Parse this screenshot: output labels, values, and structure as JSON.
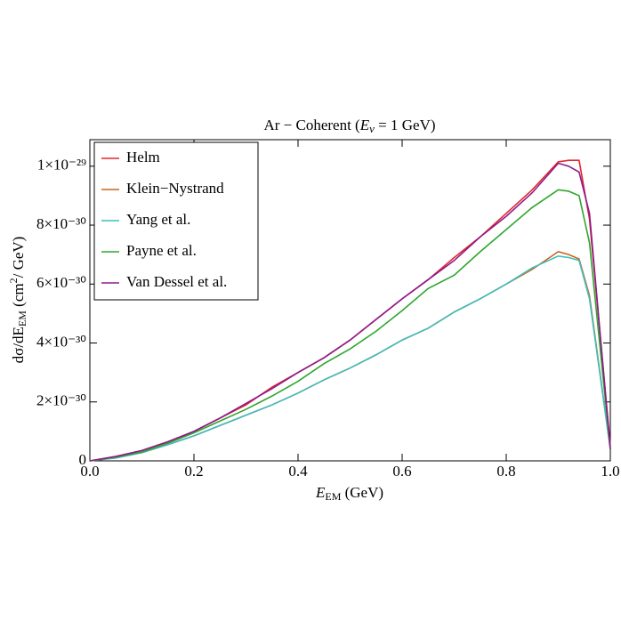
{
  "chart_data": {
    "type": "line",
    "title": [
      "Ar − Coherent (",
      "E",
      "ν",
      " = 1 GeV)"
    ],
    "x_label": [
      "E",
      "EM",
      " (GeV)"
    ],
    "y_label": [
      "dσ/dE",
      "EM",
      " (cm",
      "2",
      "/ GeV)"
    ],
    "x": [
      0,
      0.05,
      0.1,
      0.15,
      0.2,
      0.25,
      0.3,
      0.35,
      0.4,
      0.45,
      0.5,
      0.55,
      0.6,
      0.65,
      0.7,
      0.75,
      0.8,
      0.85,
      0.9,
      0.92,
      0.94,
      0.96,
      1.0
    ],
    "series": [
      {
        "name": "Helm",
        "color": "#e3262b",
        "values": [
          0,
          1.5e-31,
          3.5e-31,
          6.5e-31,
          1e-30,
          1.45e-30,
          1.9e-30,
          2.5e-30,
          3e-30,
          3.5e-30,
          4.1e-30,
          4.8e-30,
          5.5e-30,
          6.15e-30,
          6.9e-30,
          7.6e-30,
          8.4e-30,
          9.2e-30,
          1.015e-29,
          1.02e-29,
          1.02e-29,
          8.2e-30,
          5e-31
        ]
      },
      {
        "name": "Klein−Nystrand",
        "color": "#c8661e",
        "values": [
          0,
          1e-31,
          2.8e-31,
          5.5e-31,
          8.5e-31,
          1.2e-30,
          1.55e-30,
          1.9e-30,
          2.3e-30,
          2.75e-30,
          3.15e-30,
          3.6e-30,
          4.1e-30,
          4.5e-30,
          5.05e-30,
          5.5e-30,
          6e-30,
          6.5e-30,
          7.1e-30,
          7e-30,
          6.85e-30,
          5.6e-30,
          4e-31
        ]
      },
      {
        "name": "Yang et al.",
        "color": "#3fbdbd",
        "values": [
          0,
          1e-31,
          2.8e-31,
          5.5e-31,
          8.5e-31,
          1.2e-30,
          1.55e-30,
          1.9e-30,
          2.3e-30,
          2.75e-30,
          3.15e-30,
          3.6e-30,
          4.1e-30,
          4.5e-30,
          5.05e-30,
          5.5e-30,
          6e-30,
          6.55e-30,
          6.95e-30,
          6.9e-30,
          6.8e-30,
          5.5e-30,
          4e-31
        ]
      },
      {
        "name": "Payne et al.",
        "color": "#2ea62e",
        "values": [
          0,
          1.3e-31,
          3e-31,
          6e-31,
          9.5e-31,
          1.35e-30,
          1.75e-30,
          2.2e-30,
          2.7e-30,
          3.3e-30,
          3.8e-30,
          4.4e-30,
          5.1e-30,
          5.85e-30,
          6.3e-30,
          7.1e-30,
          7.85e-30,
          8.6e-30,
          9.2e-30,
          9.15e-30,
          9e-30,
          7.4e-30,
          4e-31
        ]
      },
      {
        "name": "Van Dessel et al.",
        "color": "#8c1c8c",
        "values": [
          0,
          1.5e-31,
          3.5e-31,
          6.5e-31,
          1e-30,
          1.45e-30,
          1.95e-30,
          2.45e-30,
          3e-30,
          3.5e-30,
          4.1e-30,
          4.8e-30,
          5.5e-30,
          6.15e-30,
          6.8e-30,
          7.6e-30,
          8.3e-30,
          9.1e-30,
          1.01e-29,
          1e-29,
          9.8e-30,
          8.4e-30,
          4e-31
        ]
      }
    ],
    "xlim": [
      0,
      1
    ],
    "xticks": [
      {
        "value": 0,
        "label": "0.0"
      },
      0.2,
      0.4,
      0.6,
      0.8,
      {
        "value": 1,
        "label": "1.0"
      }
    ],
    "ylim": [
      0,
      1.09e-29
    ],
    "yticks": [
      0,
      {
        "value": 2e-30,
        "label": "2×10⁻³⁰"
      },
      {
        "value": 4e-30,
        "label": "4×10⁻³⁰"
      },
      {
        "value": 6e-30,
        "label": "6×10⁻³⁰"
      },
      {
        "value": 8e-30,
        "label": "8×10⁻³⁰"
      },
      {
        "value": 1e-29,
        "label": "1×10⁻²⁹"
      }
    ],
    "legend": "upper-left"
  }
}
